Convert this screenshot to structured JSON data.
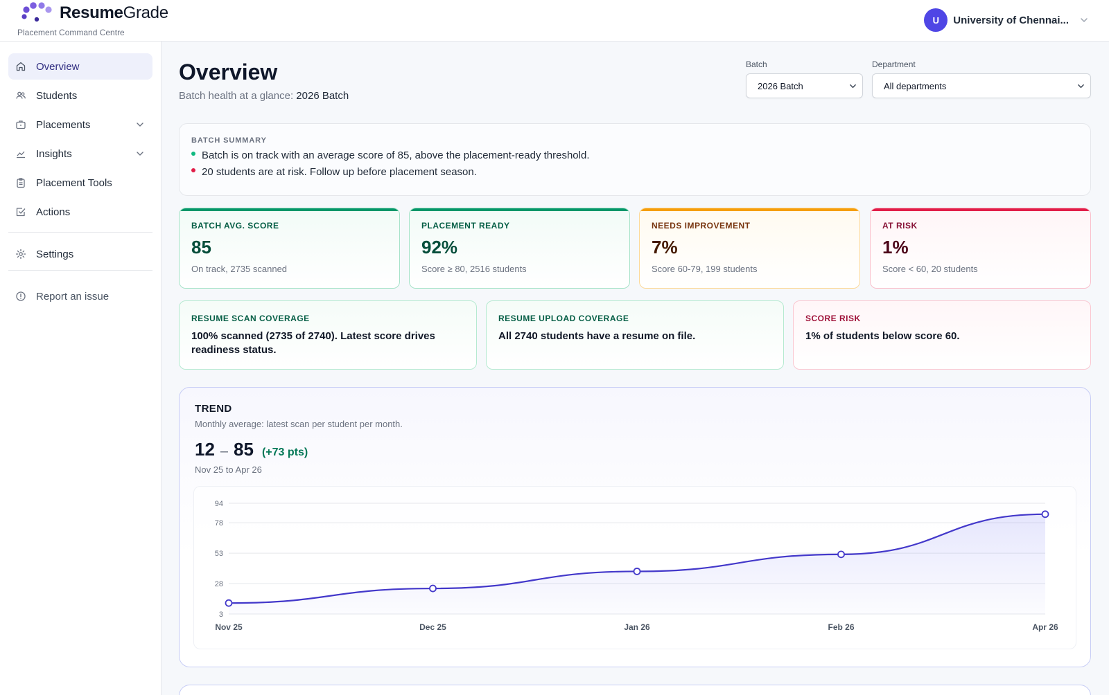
{
  "brand": {
    "name_bold": "Resume",
    "name_rest": "Grade",
    "tagline": "Placement Command Centre"
  },
  "user": {
    "initial": "U",
    "name": "University of Chennai..."
  },
  "sidebar": {
    "items": [
      {
        "label": "Overview",
        "icon": "home-icon"
      },
      {
        "label": "Students",
        "icon": "users-icon"
      },
      {
        "label": "Placements",
        "icon": "briefcase-icon"
      },
      {
        "label": "Insights",
        "icon": "chart-line-icon"
      },
      {
        "label": "Placement Tools",
        "icon": "clipboard-icon"
      },
      {
        "label": "Actions",
        "icon": "checkbox-icon"
      }
    ],
    "settings": "Settings",
    "report": "Report an issue"
  },
  "page": {
    "title": "Overview",
    "subtitle_prefix": "Batch health at a glance: ",
    "subtitle_batch": "2026 Batch"
  },
  "filters": {
    "batch_label": "Batch",
    "batch_value": "2026 Batch",
    "department_label": "Department",
    "department_value": "All departments"
  },
  "summary": {
    "label": "BATCH SUMMARY",
    "bullets": [
      {
        "text": "Batch is on track with an average score of 85, above the placement-ready threshold.",
        "color": "#10b981"
      },
      {
        "text": "20 students are at risk. Follow up before placement season.",
        "color": "#e11d48"
      }
    ]
  },
  "kpis": [
    {
      "label": "BATCH AVG. SCORE",
      "value": "85",
      "note": "On track, 2735 scanned",
      "color": "#059669"
    },
    {
      "label": "PLACEMENT READY",
      "value": "92%",
      "note": "Score ≥ 80, 2516 students",
      "color": "#059669"
    },
    {
      "label": "NEEDS IMPROVEMENT",
      "value": "7%",
      "note": "Score 60-79, 199 students",
      "color": "#f59e0b"
    },
    {
      "label": "AT RISK",
      "value": "1%",
      "note": "Score < 60, 20 students",
      "color": "#e11d48"
    }
  ],
  "coverage": [
    {
      "label": "RESUME SCAN COVERAGE",
      "text": "100% scanned (2735 of 2740). Latest score drives readiness status."
    },
    {
      "label": "RESUME UPLOAD COVERAGE",
      "text": "All 2740 students have a resume on file."
    },
    {
      "label": "SCORE RISK",
      "text": "1% of students below score 60."
    }
  ],
  "trend": {
    "title": "TREND",
    "subtitle": "Monthly average: latest scan per student per month.",
    "start": "12",
    "separator": "–",
    "end": "85",
    "delta": "(+73 pts)",
    "dates": "Nov 25 to Apr 26"
  },
  "chart_data": {
    "type": "area",
    "title": "",
    "xlabel": "",
    "ylabel": "",
    "categories": [
      "Nov 25",
      "Dec 25",
      "Jan 26",
      "Feb 26",
      "Apr 26"
    ],
    "y_ticks": [
      3,
      28,
      53,
      78,
      94
    ],
    "ylim": [
      3,
      94
    ],
    "series": [
      {
        "values": [
          12,
          24,
          38,
          52,
          85
        ]
      }
    ],
    "grid": true,
    "color": "#4338ca"
  }
}
